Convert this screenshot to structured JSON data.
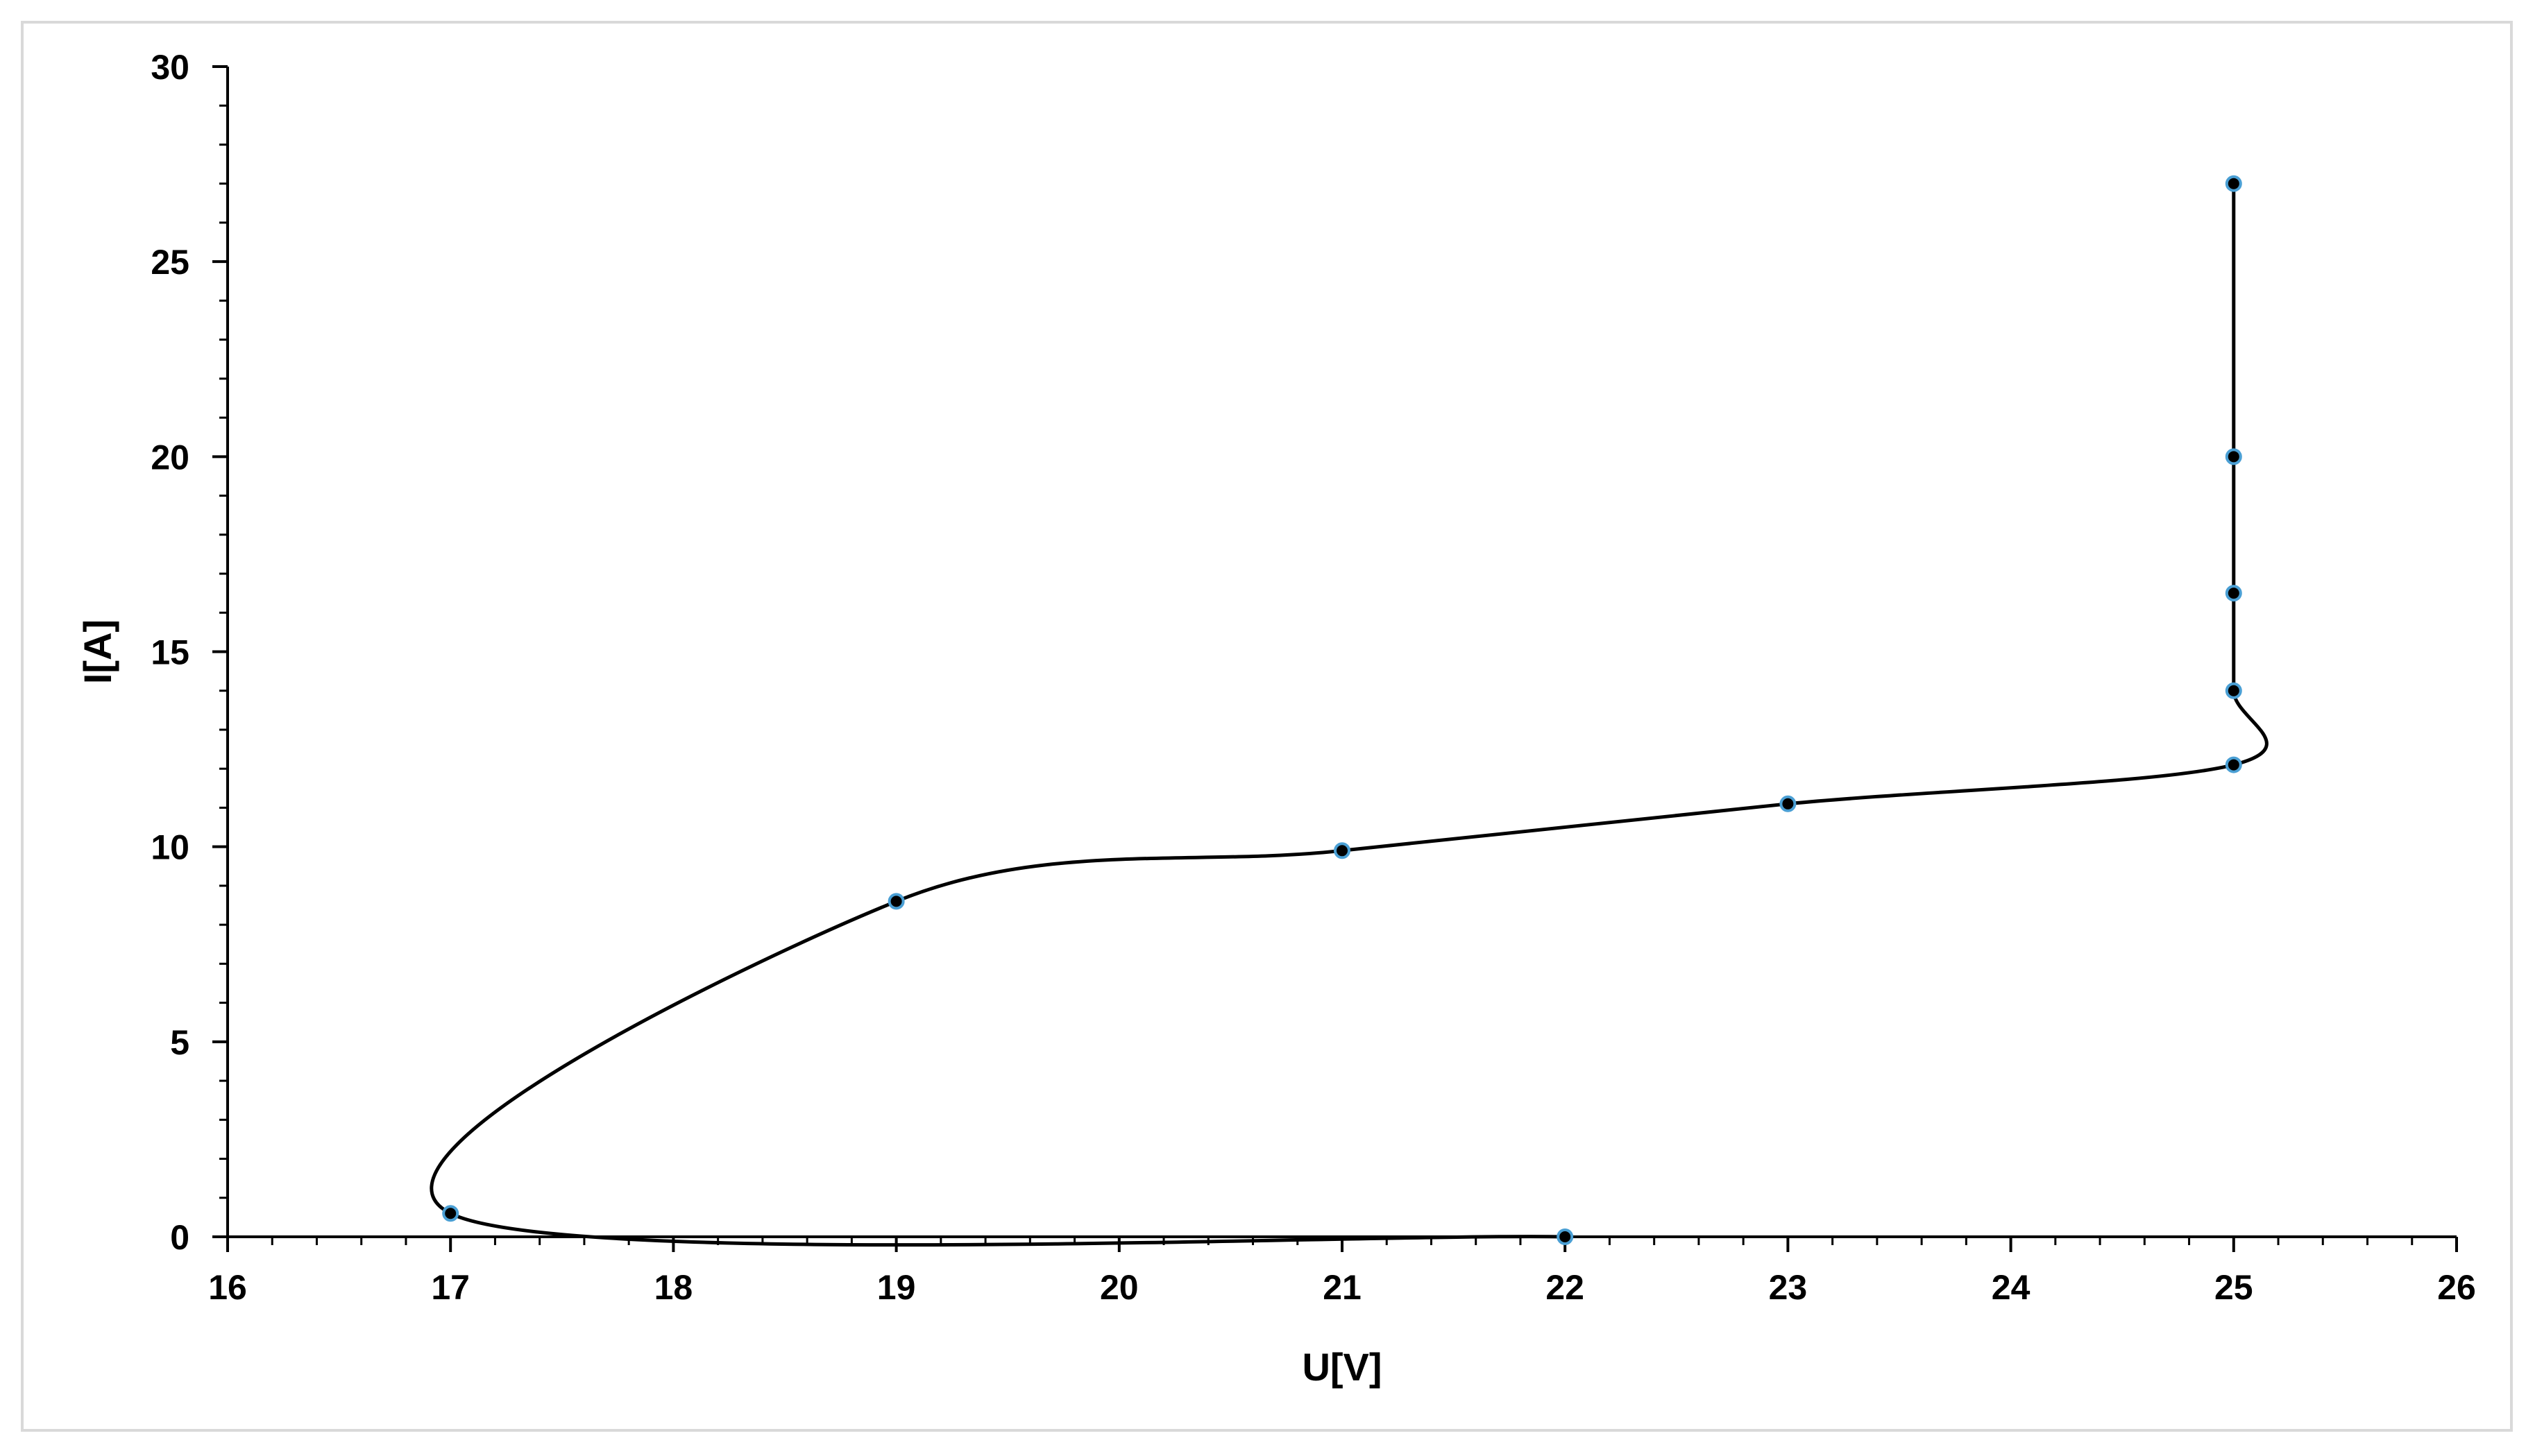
{
  "chart_data": {
    "type": "scatter",
    "title": "",
    "xlabel": "U[V]",
    "ylabel": "I[A]",
    "xlim": [
      16,
      26
    ],
    "ylim": [
      0,
      30
    ],
    "x_ticks": [
      16,
      17,
      18,
      19,
      20,
      21,
      22,
      23,
      24,
      25,
      26
    ],
    "y_ticks": [
      0,
      5,
      10,
      15,
      20,
      25,
      30
    ],
    "x_minor_step": 0.2,
    "y_minor_step": 1,
    "grid": false,
    "legend": "none",
    "line_style": "smoothed",
    "colors": {
      "line": "#000000",
      "marker_fill": "#000000",
      "marker_edge": "#4a9fd4",
      "axis": "#000000",
      "frame": "#d9d9d9"
    },
    "series": [
      {
        "points": [
          {
            "x": 22,
            "y": 0
          },
          {
            "x": 17,
            "y": 0.6
          },
          {
            "x": 19,
            "y": 8.6
          },
          {
            "x": 21,
            "y": 9.9
          },
          {
            "x": 23,
            "y": 11.1
          },
          {
            "x": 25,
            "y": 12.1
          },
          {
            "x": 25,
            "y": 14
          },
          {
            "x": 25,
            "y": 16.5
          },
          {
            "x": 25,
            "y": 20
          },
          {
            "x": 25,
            "y": 27
          }
        ]
      }
    ]
  }
}
